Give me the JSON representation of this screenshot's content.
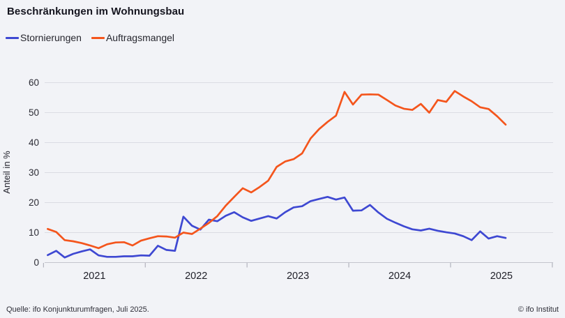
{
  "title": "Beschränkungen im Wohnungsbau",
  "legend": [
    {
      "label": "Stornierungen",
      "color": "#3e48d2"
    },
    {
      "label": "Auftragsmangel",
      "color": "#f4551c"
    }
  ],
  "footer": {
    "source": "Quelle: ifo Konjunkturumfragen, Juli 2025.",
    "copyright": "© ifo Institut"
  },
  "chart_data": {
    "type": "line",
    "title": "Beschränkungen im Wohnungsbau",
    "ylabel": "Anteil in %",
    "ylim": [
      0,
      60
    ],
    "yticks": [
      0,
      10,
      20,
      30,
      40,
      50,
      60
    ],
    "x_start_month": "2021-01",
    "x_end_month": "2025-07",
    "year_tick_labels": [
      "2021",
      "2022",
      "2023",
      "2024",
      "2025"
    ],
    "grid": true,
    "legend_position": "top-left",
    "series": [
      {
        "name": "Stornierungen",
        "color": "#3e48d2",
        "values": [
          2.5,
          3.9,
          1.7,
          2.9,
          3.7,
          4.4,
          2.4,
          1.9,
          1.9,
          2.1,
          2.1,
          2.4,
          2.3,
          5.6,
          4.2,
          3.9,
          15.3,
          12.3,
          11.0,
          14.3,
          13.8,
          15.6,
          16.8,
          15.1,
          13.9,
          14.7,
          15.5,
          14.7,
          16.8,
          18.4,
          18.8,
          20.5,
          21.2,
          21.9,
          21.0,
          21.7,
          17.3,
          17.4,
          19.2,
          16.7,
          14.6,
          13.3,
          12.1,
          11.1,
          10.7,
          11.3,
          10.6,
          10.1,
          9.7,
          8.8,
          7.5,
          10.4,
          8.0,
          8.8,
          8.2
        ]
      },
      {
        "name": "Auftragsmangel",
        "color": "#f4551c",
        "values": [
          11.2,
          10.2,
          7.5,
          7.1,
          6.5,
          5.7,
          4.8,
          6.1,
          6.7,
          6.8,
          5.7,
          7.3,
          8.1,
          8.8,
          8.7,
          8.3,
          10.0,
          9.5,
          11.3,
          13.2,
          15.5,
          19.0,
          21.9,
          24.8,
          23.4,
          25.2,
          27.3,
          31.9,
          33.7,
          34.5,
          36.4,
          41.4,
          44.5,
          46.9,
          49.0,
          56.9,
          52.7,
          56.0,
          56.1,
          56.0,
          54.2,
          52.4,
          51.3,
          50.9,
          52.9,
          50.0,
          54.2,
          53.6,
          57.2,
          55.4,
          53.8,
          51.8,
          51.2,
          48.8,
          46.0
        ]
      }
    ]
  }
}
